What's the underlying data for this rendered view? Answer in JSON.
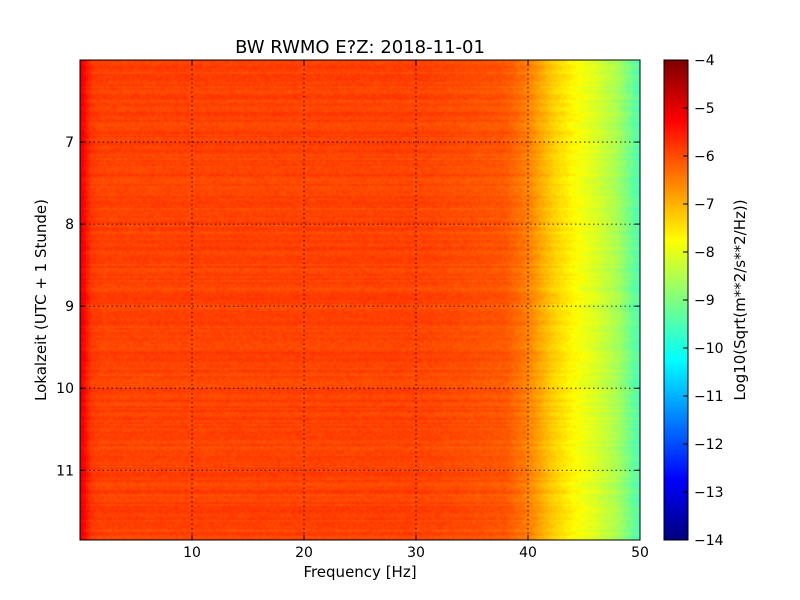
{
  "chart_data": {
    "type": "heatmap",
    "title": "BW RWMO E?Z: 2018-11-01",
    "xlabel": "Frequency [Hz]",
    "ylabel": "Lokalzeit (UTC + 1 Stunde)",
    "xlim": [
      0,
      50
    ],
    "ylim": [
      11.85,
      6.0
    ],
    "y_inverted": true,
    "xticks": [
      10,
      20,
      30,
      40,
      50
    ],
    "xtick_labels": [
      "10",
      "20",
      "30",
      "40",
      "50"
    ],
    "yticks": [
      7,
      8,
      9,
      10,
      11
    ],
    "ytick_labels": [
      "7",
      "8",
      "9",
      "10",
      "11"
    ],
    "grid": true,
    "grid_style": "dotted",
    "colormap": "jet",
    "colorbar": {
      "label": "Log10(Sqrt(m**2/s**2/Hz))",
      "range": [
        -14,
        -4
      ],
      "ticks": [
        -4,
        -5,
        -6,
        -7,
        -8,
        -9,
        -10,
        -11,
        -12,
        -13,
        -14
      ],
      "tick_labels": [
        "−4",
        "−5",
        "−6",
        "−7",
        "−8",
        "−9",
        "−10",
        "−11",
        "−12",
        "−13",
        "−14"
      ]
    },
    "spectrum_profile": {
      "frequency_hz": [
        0,
        0.5,
        1,
        2,
        5,
        10,
        20,
        30,
        38,
        40,
        42,
        44,
        46,
        48,
        49.5,
        50
      ],
      "log10_amplitude": [
        -5.0,
        -5.4,
        -5.8,
        -5.9,
        -5.9,
        -5.9,
        -5.9,
        -5.9,
        -6.1,
        -6.5,
        -7.2,
        -7.7,
        -8.1,
        -8.6,
        -9.3,
        -9.5
      ]
    },
    "high_energy_bands": [
      {
        "time": 6.42,
        "f_range": [
          15,
          40
        ],
        "log10_amplitude": -5.3
      },
      {
        "time": 6.85,
        "f_range": [
          20,
          46
        ],
        "log10_amplitude": -5.2
      },
      {
        "time": 6.98,
        "f_range": [
          16,
          40
        ],
        "log10_amplitude": -5.1
      },
      {
        "time": 8.35,
        "f_range": [
          18,
          44
        ],
        "log10_amplitude": -5.4
      },
      {
        "time": 9.62,
        "f_range": [
          20,
          50
        ],
        "log10_amplitude": -5.2
      },
      {
        "time": 9.98,
        "f_range": [
          16,
          46
        ],
        "log10_amplitude": -4.9
      },
      {
        "time": 10.08,
        "f_range": [
          20,
          46
        ],
        "log10_amplitude": -5.3
      },
      {
        "time": 10.35,
        "f_range": [
          16,
          48
        ],
        "log10_amplitude": -5.4
      },
      {
        "time": 10.55,
        "f_range": [
          18,
          50
        ],
        "log10_amplitude": -5.4
      },
      {
        "time": 10.72,
        "f_range": [
          16,
          50
        ],
        "log10_amplitude": -5.0
      },
      {
        "time": 11.22,
        "f_range": [
          14,
          50
        ],
        "log10_amplitude": -5.3
      },
      {
        "time": 11.52,
        "f_range": [
          16,
          50
        ],
        "log10_amplitude": -5.4
      },
      {
        "time": 11.65,
        "f_range": [
          18,
          46
        ],
        "log10_amplitude": -5.3
      }
    ]
  }
}
